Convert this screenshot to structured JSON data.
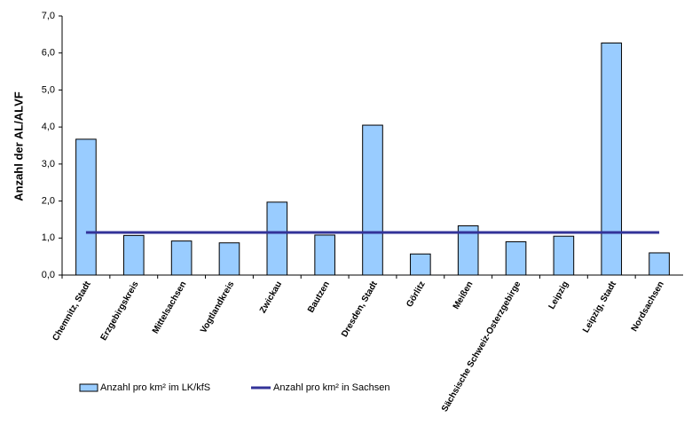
{
  "chart_data": {
    "type": "bar",
    "y_label": "Anzahl der AL/ALVF",
    "categories": [
      "Chemnitz, Stadt",
      "Erzgebirgskreis",
      "Mittelsachsen",
      "Vogtlandkreis",
      "Zwickau",
      "Bautzen",
      "Dresden, Stadt",
      "Görlitz",
      "Meißen",
      "Sächsische Schweiz-Osterzgebirge",
      "Leipzig",
      "Leipzig, Stadt",
      "Nordsachsen"
    ],
    "series": [
      {
        "name": "Anzahl pro km² im LK/kfS",
        "type": "bar",
        "color": "#99ccff",
        "values": [
          3.67,
          1.07,
          0.92,
          0.87,
          1.97,
          1.08,
          4.05,
          0.57,
          1.33,
          0.9,
          1.05,
          6.27,
          0.6
        ]
      },
      {
        "name": "Anzahl pro km² in Sachsen",
        "type": "line",
        "color": "#333399",
        "values": [
          1.15,
          1.15,
          1.15,
          1.15,
          1.15,
          1.15,
          1.15,
          1.15,
          1.15,
          1.15,
          1.15,
          1.15,
          1.15
        ]
      }
    ],
    "ylim": [
      0,
      7
    ],
    "yticks": [
      {
        "value": 0,
        "label": "0,0"
      },
      {
        "value": 1,
        "label": "1,0"
      },
      {
        "value": 2,
        "label": "2,0"
      },
      {
        "value": 3,
        "label": "3,0"
      },
      {
        "value": 4,
        "label": "4,0"
      },
      {
        "value": 5,
        "label": "5,0"
      },
      {
        "value": 6,
        "label": "6,0"
      },
      {
        "value": 7,
        "label": "7,0"
      }
    ],
    "grid": false,
    "legend": "bottom"
  }
}
